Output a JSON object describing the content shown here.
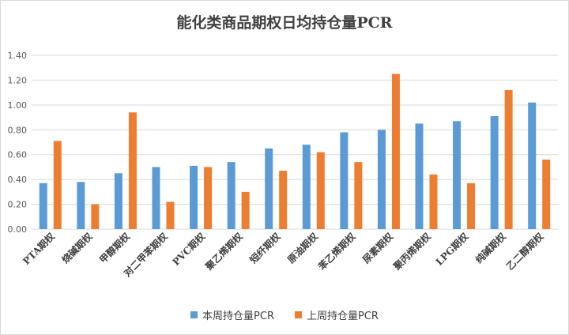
{
  "chart_data": {
    "type": "bar",
    "title": "能化类商品期权日均持仓量PCR",
    "xlabel": "",
    "ylabel": "",
    "ylim": [
      0,
      1.4
    ],
    "yticks": [
      "0.00",
      "0.20",
      "0.40",
      "0.60",
      "0.80",
      "1.00",
      "1.20",
      "1.40"
    ],
    "grid": true,
    "legend_position": "bottom",
    "categories": [
      "PTA期权",
      "烧碱期权",
      "甲醇期权",
      "对二甲苯期权",
      "PVC期权",
      "聚乙烯期权",
      "短纤期权",
      "原油期权",
      "苯乙烯期权",
      "尿素期权",
      "聚丙烯期权",
      "LPG期权",
      "纯碱期权",
      "乙二醇期权"
    ],
    "series": [
      {
        "name": "本周持仓量PCR",
        "color": "#5b9bd5",
        "values": [
          0.37,
          0.38,
          0.45,
          0.5,
          0.51,
          0.54,
          0.65,
          0.68,
          0.78,
          0.8,
          0.85,
          0.87,
          0.91,
          1.02
        ]
      },
      {
        "name": "上周持仓量PCR",
        "color": "#ed7d31",
        "values": [
          0.71,
          0.2,
          0.94,
          0.22,
          0.5,
          0.3,
          0.47,
          0.62,
          0.54,
          1.25,
          0.44,
          0.37,
          1.12,
          0.56
        ]
      }
    ]
  }
}
